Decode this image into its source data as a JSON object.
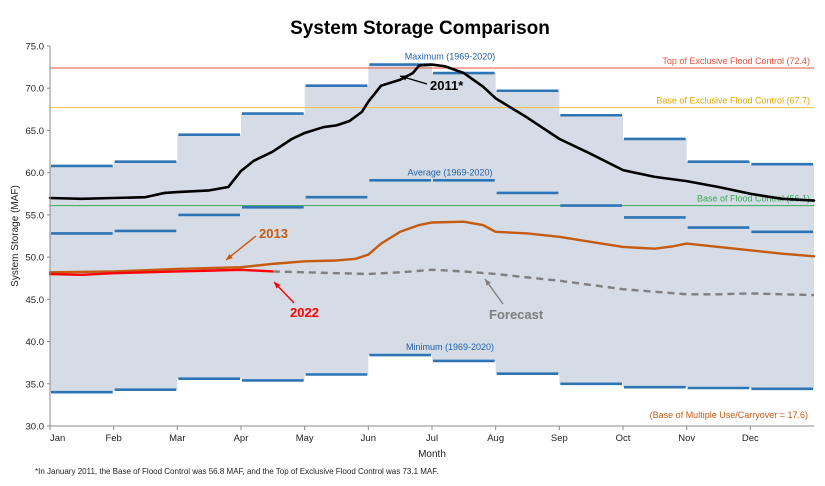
{
  "chart_data": {
    "type": "line",
    "title": "System Storage Comparison",
    "xlabel": "Month",
    "ylabel": "System Storage (MAF)",
    "ylim": [
      30,
      75
    ],
    "yticks": [
      30,
      35,
      40,
      45,
      50,
      55,
      60,
      65,
      70,
      75
    ],
    "ytick_labels": [
      "30.0",
      "35.0",
      "40.0",
      "45.0",
      "50.0",
      "55.0",
      "60.0",
      "65.0",
      "70.0",
      "75.0"
    ],
    "xlim": [
      0,
      12
    ],
    "month_labels": [
      "Jan",
      "Feb",
      "Mar",
      "Apr",
      "May",
      "Jun",
      "Jul",
      "Aug",
      "Sep",
      "Oct",
      "Nov",
      "Dec"
    ],
    "grid": false,
    "monthly_bands": {
      "maximum": {
        "label": "Maximum (1969-2020)",
        "values": [
          60.8,
          61.3,
          64.5,
          67.0,
          70.3,
          72.8,
          71.8,
          69.7,
          66.8,
          64.0,
          61.3,
          61.0
        ]
      },
      "average": {
        "label": "Average (1969-2020)",
        "values": [
          52.8,
          53.1,
          55.0,
          55.9,
          57.1,
          59.1,
          59.1,
          57.6,
          56.1,
          54.7,
          53.5,
          53.0
        ]
      },
      "minimum": {
        "label": "Minimum (1969-2020)",
        "values": [
          34.0,
          34.3,
          35.6,
          35.4,
          36.1,
          38.4,
          37.7,
          36.2,
          35.0,
          34.6,
          34.5,
          34.4
        ]
      },
      "band_fill": "#d6dce5",
      "line_color": "#2e75b6"
    },
    "reference_lines": [
      {
        "label": "Top of Exclusive Flood Control (72.4)",
        "value": 72.4,
        "color": "#e8533f"
      },
      {
        "label": "Base of Exclusive Flood Control (67.7)",
        "value": 67.7,
        "color": "#f5c242"
      },
      {
        "label": "Base of Flood Control (56.1)",
        "value": 56.1,
        "color": "#3aa857"
      }
    ],
    "carryover_note": "(Base of Multiple Use/Carryover = 17.6)",
    "series": [
      {
        "name": "2011*",
        "color": "#000000",
        "style": "solid",
        "x": [
          0,
          0.5,
          1.0,
          1.5,
          1.8,
          2.0,
          2.5,
          2.8,
          3.0,
          3.2,
          3.5,
          3.8,
          4.0,
          4.3,
          4.5,
          4.7,
          4.9,
          5.0,
          5.2,
          5.5,
          5.7,
          5.8,
          6.0,
          6.2,
          6.5,
          6.8,
          7.0,
          7.5,
          8.0,
          8.5,
          9.0,
          9.5,
          10.0,
          10.5,
          11.0,
          11.5,
          12.0
        ],
        "y": [
          57.0,
          56.9,
          57.0,
          57.1,
          57.6,
          57.7,
          57.9,
          58.3,
          60.2,
          61.4,
          62.5,
          64.0,
          64.7,
          65.4,
          65.6,
          66.1,
          67.2,
          68.4,
          70.3,
          71.0,
          71.8,
          72.7,
          72.8,
          72.6,
          71.8,
          70.2,
          68.8,
          66.5,
          64.0,
          62.2,
          60.3,
          59.5,
          59.0,
          58.3,
          57.5,
          56.9,
          56.7
        ]
      },
      {
        "name": "2013",
        "color": "#c55a11",
        "style": "solid",
        "x": [
          0,
          1.0,
          2.0,
          3.0,
          3.5,
          4.0,
          4.5,
          4.8,
          5.0,
          5.2,
          5.5,
          5.8,
          6.0,
          6.5,
          6.8,
          7.0,
          7.5,
          8.0,
          8.5,
          9.0,
          9.5,
          9.8,
          10.0,
          10.5,
          11.0,
          11.5,
          12.0
        ],
        "y": [
          48.2,
          48.3,
          48.6,
          48.8,
          49.2,
          49.5,
          49.6,
          49.8,
          50.3,
          51.6,
          53.0,
          53.8,
          54.1,
          54.2,
          53.8,
          53.0,
          52.8,
          52.4,
          51.8,
          51.2,
          51.0,
          51.3,
          51.6,
          51.2,
          50.8,
          50.4,
          50.1
        ]
      },
      {
        "name": "2022",
        "color": "#ff0000",
        "style": "solid",
        "x": [
          0,
          0.5,
          1.0,
          1.5,
          2.0,
          2.5,
          3.0,
          3.5
        ],
        "y": [
          48.0,
          47.9,
          48.1,
          48.2,
          48.3,
          48.4,
          48.5,
          48.3
        ]
      },
      {
        "name": "Forecast",
        "color": "#7f7f7f",
        "style": "dashed",
        "x": [
          3.5,
          4.0,
          4.5,
          5.0,
          5.5,
          6.0,
          6.5,
          7.0,
          7.5,
          8.0,
          8.5,
          9.0,
          9.5,
          10.0,
          10.5,
          11.0,
          11.5,
          12.0
        ],
        "y": [
          48.3,
          48.2,
          48.1,
          48.0,
          48.2,
          48.5,
          48.3,
          48.0,
          47.6,
          47.2,
          46.7,
          46.2,
          45.9,
          45.6,
          45.6,
          45.7,
          45.6,
          45.5
        ]
      }
    ],
    "callouts": {
      "2011": "2011*",
      "2013": "2013",
      "2022": "2022",
      "forecast": "Forecast"
    },
    "footnote": "*In January 2011, the Base of Flood Control was 56.8 MAF, and the Top of Exclusive Flood Control was 73.1 MAF."
  }
}
